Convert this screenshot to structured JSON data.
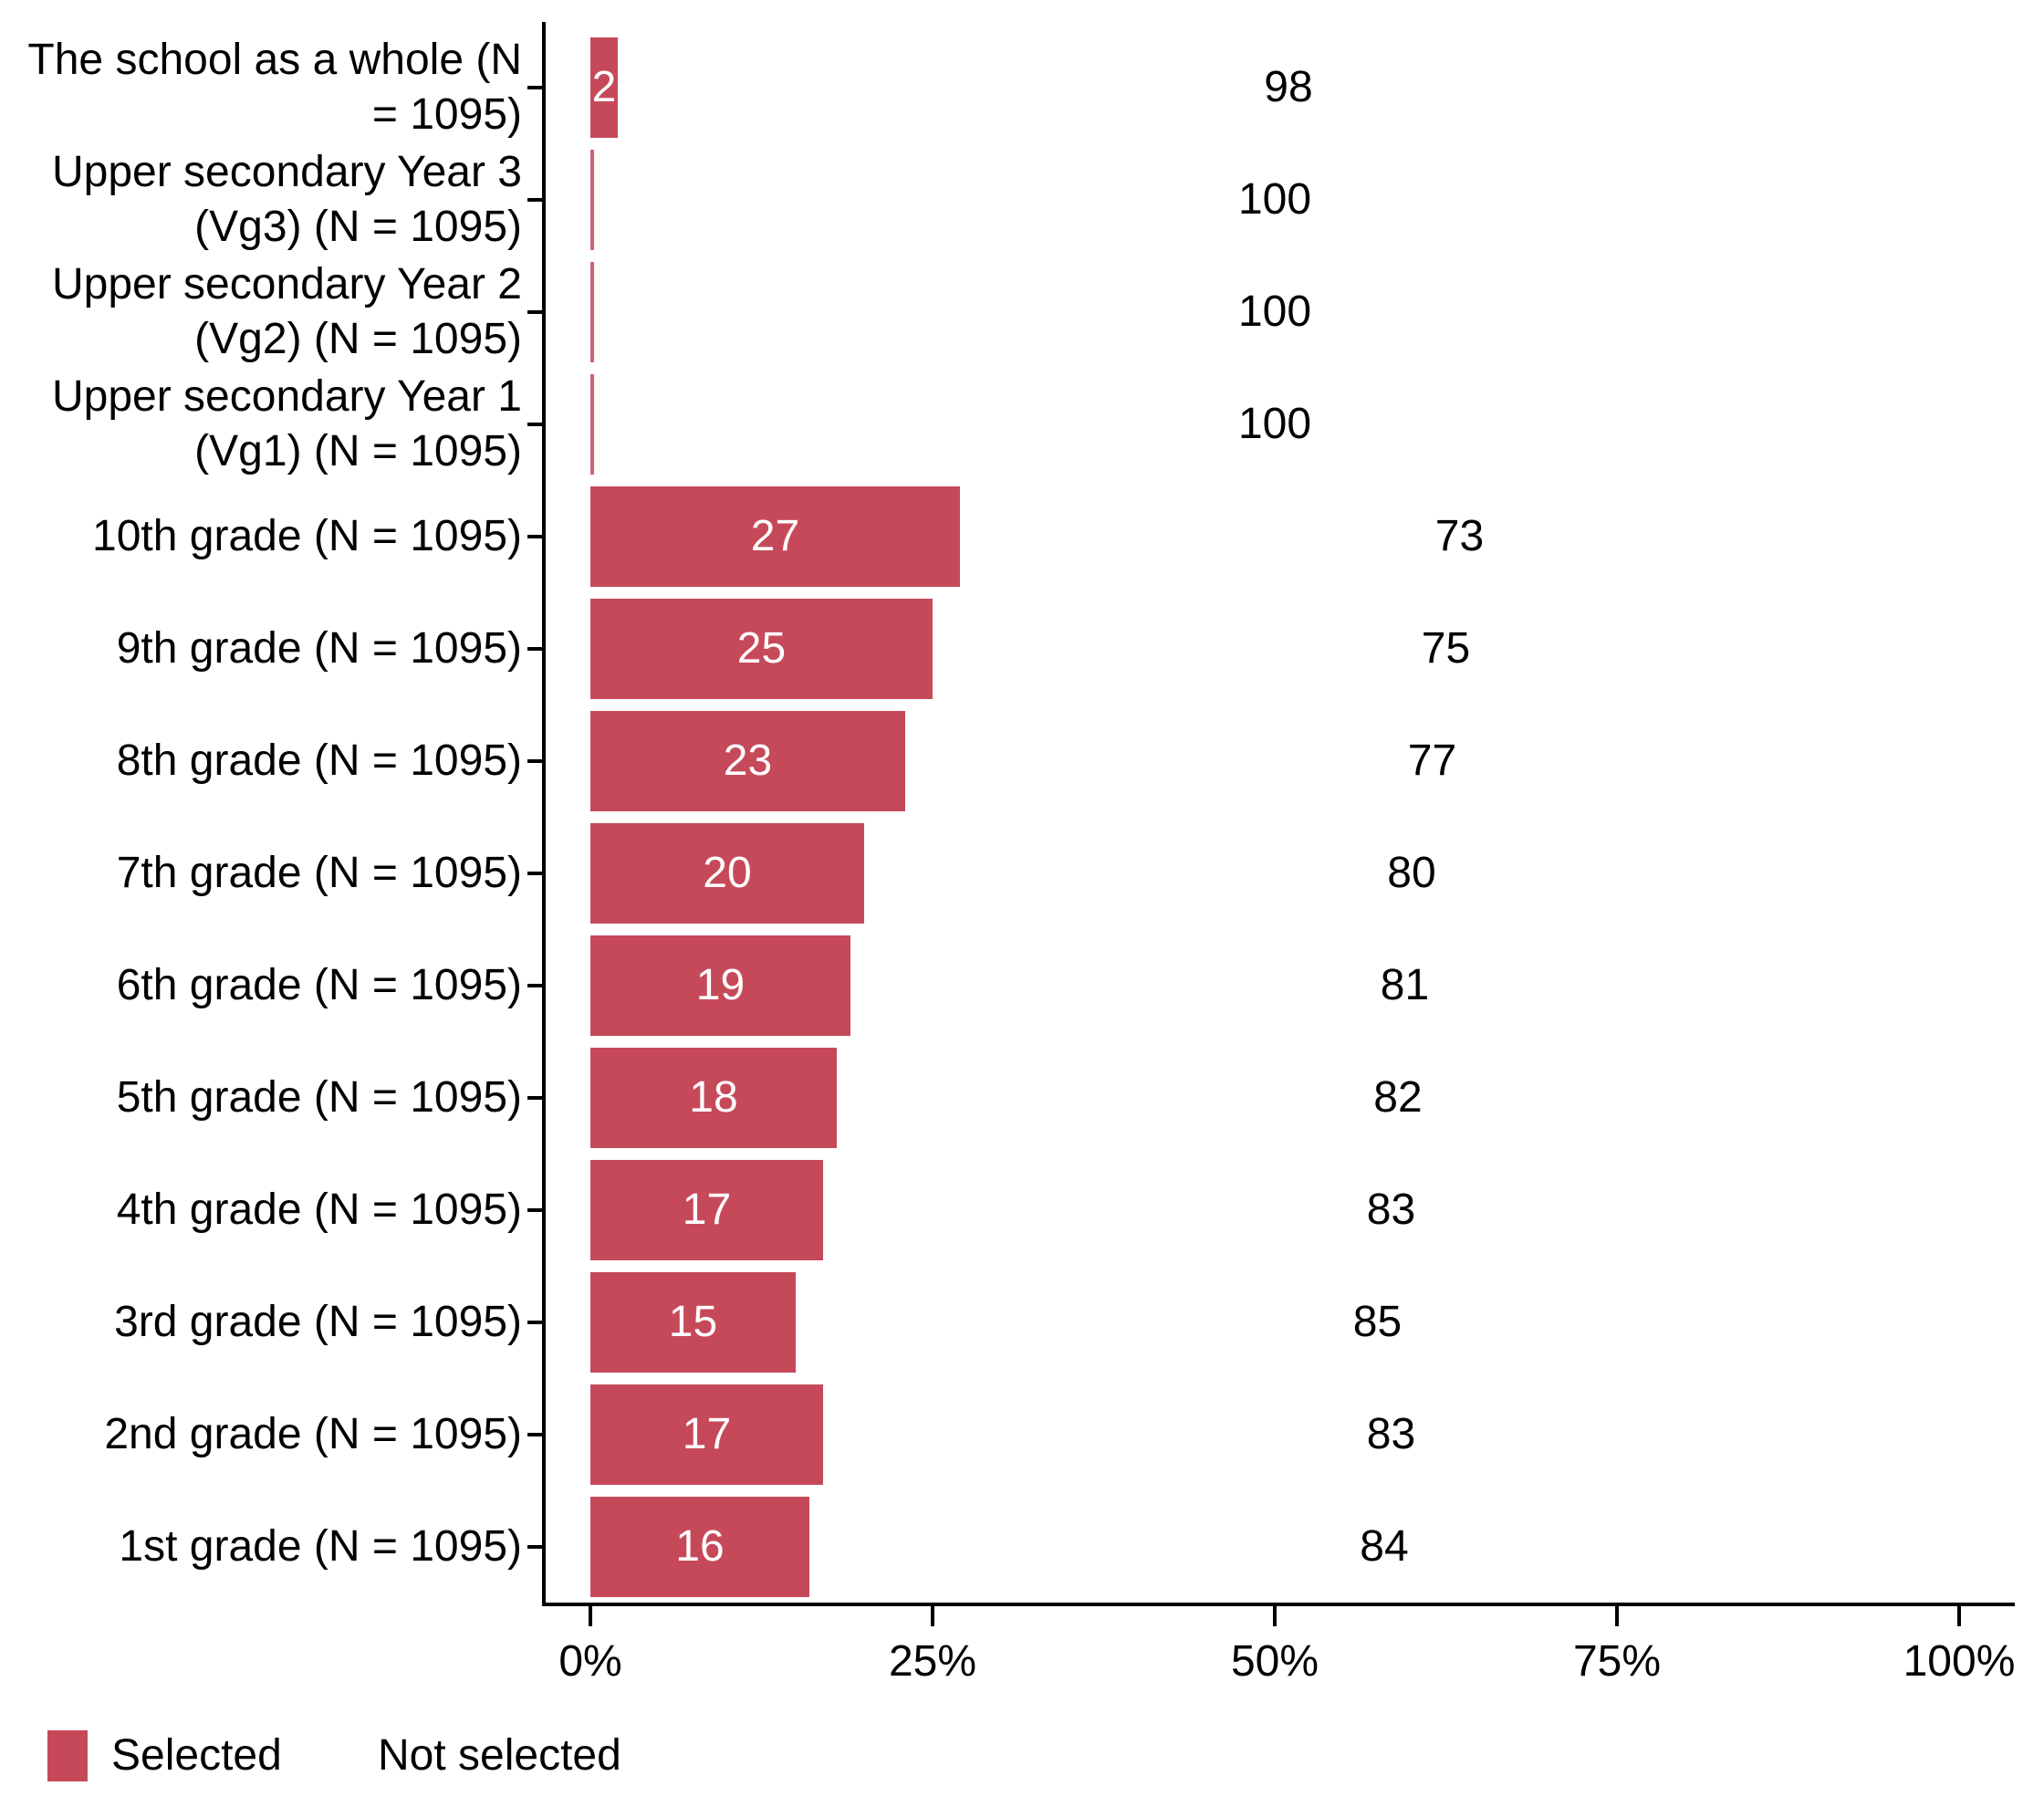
{
  "chart_data": {
    "type": "bar",
    "orientation": "horizontal",
    "stacked": true,
    "unit": "percent",
    "title": "",
    "xlabel": "",
    "ylabel": "",
    "grid": false,
    "xlim": [
      0,
      100
    ],
    "x_ticks": [
      {
        "value": 0,
        "label": "0%"
      },
      {
        "value": 25,
        "label": "25%"
      },
      {
        "value": 50,
        "label": "50%"
      },
      {
        "value": 75,
        "label": "75%"
      },
      {
        "value": 100,
        "label": "100%"
      }
    ],
    "categories": [
      "The school as a whole (N\n= 1095)",
      "Upper secondary Year 3\n(Vg3) (N = 1095)",
      "Upper secondary Year 2\n(Vg2) (N = 1095)",
      "Upper secondary Year 1\n(Vg1) (N = 1095)",
      "10th grade (N = 1095)",
      "9th grade (N = 1095)",
      "8th grade (N = 1095)",
      "7th grade (N = 1095)",
      "6th grade (N = 1095)",
      "5th grade (N = 1095)",
      "4th grade (N = 1095)",
      "3rd grade (N = 1095)",
      "2nd grade (N = 1095)",
      "1st grade (N = 1095)"
    ],
    "series": [
      {
        "name": "Selected",
        "color": "#C6495A",
        "label_color": "#FFFFFF",
        "values": [
          2,
          0,
          0,
          0,
          27,
          25,
          23,
          20,
          19,
          18,
          17,
          15,
          17,
          16
        ]
      },
      {
        "name": "Not selected",
        "color": "#FFFFFF",
        "label_color": "#000000",
        "values": [
          98,
          100,
          100,
          100,
          73,
          75,
          77,
          80,
          81,
          82,
          83,
          85,
          83,
          84
        ]
      }
    ],
    "legend_position": "bottom-left",
    "axis_color": "#000000",
    "text_color": "#000000"
  }
}
